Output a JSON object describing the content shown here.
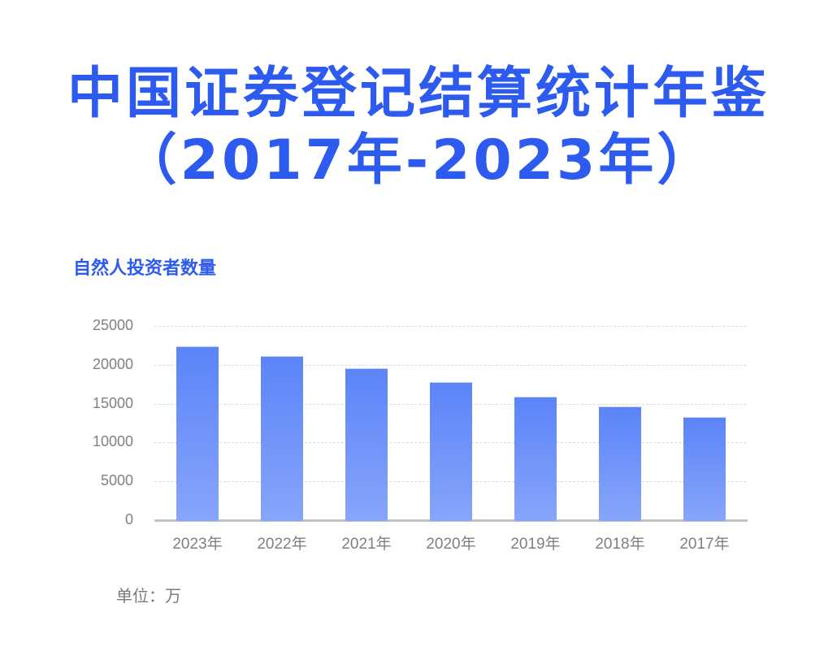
{
  "header": {
    "title_line1": "中国证券登记结算统计年鉴",
    "title_line2": "（2017年-2023年）"
  },
  "chart_title": "自然人投资者数量",
  "unit_label": "单位：万",
  "colors": {
    "title": "#2e5bef",
    "bar_top": "#5b84f8",
    "bar_bottom": "#87a5fb",
    "axis_text": "#808080"
  },
  "y_ticks": [
    "25000",
    "20000",
    "15000",
    "10000",
    "5000",
    "0"
  ],
  "x_labels": [
    "2023年",
    "2022年",
    "2021年",
    "2020年",
    "2019年",
    "2018年",
    "2017年"
  ],
  "chart_data": {
    "type": "bar",
    "title": "自然人投资者数量",
    "categories": [
      "2023年",
      "2022年",
      "2021年",
      "2020年",
      "2019年",
      "2018年",
      "2017年"
    ],
    "values": [
      22400,
      21130,
      19560,
      17780,
      15900,
      14640,
      13280
    ],
    "xlabel": "",
    "ylabel": "",
    "unit": "万",
    "ylim": [
      0,
      25000
    ],
    "yticks": [
      0,
      5000,
      10000,
      15000,
      20000,
      25000
    ],
    "grid": true,
    "grid_style": "dashed horizontal",
    "legend": "none",
    "annotations": [
      "单位：万"
    ]
  }
}
